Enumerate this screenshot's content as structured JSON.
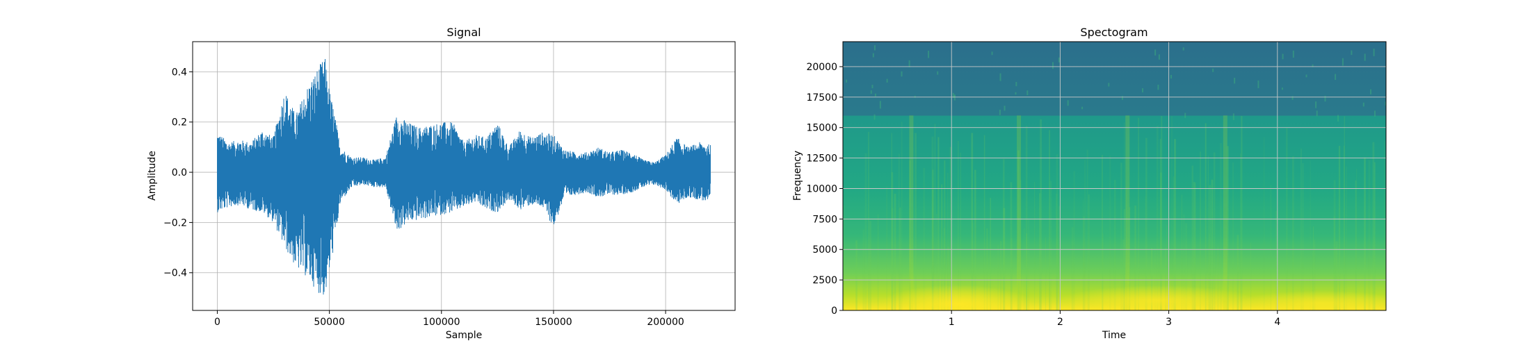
{
  "chart_data": [
    {
      "type": "line",
      "title": "Signal",
      "xlabel": "Sample",
      "ylabel": "Amplitude",
      "xlim": [
        -11000,
        231000
      ],
      "ylim": [
        -0.55,
        0.52
      ],
      "x_ticks": [
        0,
        50000,
        100000,
        150000,
        200000
      ],
      "x_tick_labels": [
        "0",
        "50000",
        "100000",
        "150000",
        "200000"
      ],
      "y_ticks": [
        -0.4,
        -0.2,
        0.0,
        0.2,
        0.4
      ],
      "y_tick_labels": [
        "−0.4",
        "−0.2",
        "0.0",
        "0.2",
        "0.4"
      ],
      "grid": true,
      "line_color": "#1f77b4",
      "series": [
        {
          "x": [
            0,
            5000,
            10000,
            15000,
            20000,
            25000,
            30000,
            35000,
            40000,
            45000,
            48000,
            50000,
            52000,
            55000,
            60000,
            65000,
            70000,
            75000,
            80000,
            85000,
            90000,
            95000,
            100000,
            105000,
            110000,
            115000,
            120000,
            125000,
            130000,
            135000,
            140000,
            145000,
            150000,
            155000,
            160000,
            165000,
            170000,
            175000,
            180000,
            185000,
            190000,
            195000,
            200000,
            205000,
            210000,
            215000,
            220000
          ],
          "max": [
            0.16,
            0.12,
            0.13,
            0.12,
            0.17,
            0.14,
            0.33,
            0.23,
            0.34,
            0.42,
            0.46,
            0.33,
            0.25,
            0.1,
            0.06,
            0.06,
            0.05,
            0.06,
            0.23,
            0.2,
            0.18,
            0.19,
            0.2,
            0.2,
            0.12,
            0.15,
            0.14,
            0.2,
            0.1,
            0.17,
            0.14,
            0.16,
            0.15,
            0.09,
            0.08,
            0.08,
            0.1,
            0.08,
            0.09,
            0.08,
            0.05,
            0.04,
            0.07,
            0.14,
            0.1,
            0.12,
            0.11
          ],
          "min": [
            -0.16,
            -0.14,
            -0.13,
            -0.15,
            -0.16,
            -0.2,
            -0.3,
            -0.38,
            -0.42,
            -0.48,
            -0.5,
            -0.4,
            -0.3,
            -0.12,
            -0.06,
            -0.05,
            -0.06,
            -0.06,
            -0.24,
            -0.2,
            -0.19,
            -0.18,
            -0.17,
            -0.16,
            -0.14,
            -0.12,
            -0.15,
            -0.16,
            -0.11,
            -0.15,
            -0.13,
            -0.14,
            -0.22,
            -0.1,
            -0.09,
            -0.08,
            -0.1,
            -0.09,
            -0.09,
            -0.08,
            -0.06,
            -0.05,
            -0.07,
            -0.13,
            -0.1,
            -0.11,
            -0.12
          ]
        }
      ]
    },
    {
      "type": "heatmap",
      "title": "Spectogram",
      "xlabel": "Time",
      "ylabel": "Frequency",
      "xlim": [
        0,
        5
      ],
      "ylim": [
        0,
        22050
      ],
      "x_ticks": [
        1,
        2,
        3,
        4
      ],
      "x_tick_labels": [
        "1",
        "2",
        "3",
        "4"
      ],
      "y_ticks": [
        0,
        2500,
        5000,
        7500,
        10000,
        12500,
        15000,
        17500,
        20000
      ],
      "y_tick_labels": [
        "0",
        "2500",
        "5000",
        "7500",
        "10000",
        "12500",
        "15000",
        "17500",
        "20000"
      ],
      "grid": true,
      "colormap": "viridis",
      "cutoff_frequency": 16000,
      "colors": {
        "high_band": "#2a7a8c",
        "mid_band": "#22a884",
        "low_band": "#5ec962",
        "peak": "#fde725"
      }
    }
  ]
}
